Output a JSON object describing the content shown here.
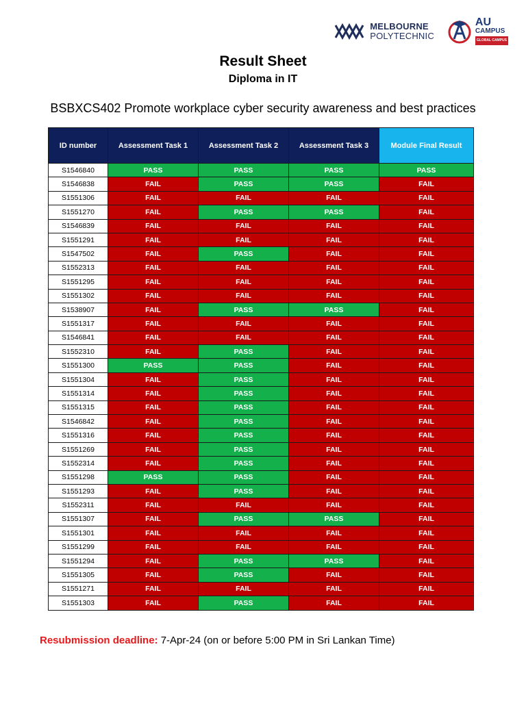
{
  "logos": {
    "melbourne_polytechnic": {
      "line1": "MELBOURNE",
      "line2": "POLYTECHNIC"
    },
    "au_campus": {
      "line1": "AU",
      "line2": "CAMPUS",
      "tagline": "GLOBAL CAMPUS"
    }
  },
  "title": "Result Sheet",
  "subtitle": "Diploma in IT",
  "course": "BSBXCS402 Promote workplace cyber security awareness and best practices",
  "table": {
    "headers": [
      "ID number",
      "Assessment Task 1",
      "Assessment Task 2",
      "Assessment Task 3",
      "Module Final Result"
    ],
    "rows": [
      [
        "S1546840",
        "PASS",
        "PASS",
        "PASS",
        "PASS"
      ],
      [
        "S1546838",
        "FAIL",
        "PASS",
        "PASS",
        "FAIL"
      ],
      [
        "S1551306",
        "FAIL",
        "FAIL",
        "FAIL",
        "FAIL"
      ],
      [
        "S1551270",
        "FAIL",
        "PASS",
        "PASS",
        "FAIL"
      ],
      [
        "S1546839",
        "FAIL",
        "FAIL",
        "FAIL",
        "FAIL"
      ],
      [
        "S1551291",
        "FAIL",
        "FAIL",
        "FAIL",
        "FAIL"
      ],
      [
        "S1547502",
        "FAIL",
        "PASS",
        "FAIL",
        "FAIL"
      ],
      [
        "S1552313",
        "FAIL",
        "FAIL",
        "FAIL",
        "FAIL"
      ],
      [
        "S1551295",
        "FAIL",
        "FAIL",
        "FAIL",
        "FAIL"
      ],
      [
        "S1551302",
        "FAIL",
        "FAIL",
        "FAIL",
        "FAIL"
      ],
      [
        "S1538907",
        "FAIL",
        "PASS",
        "PASS",
        "FAIL"
      ],
      [
        "S1551317",
        "FAIL",
        "FAIL",
        "FAIL",
        "FAIL"
      ],
      [
        "S1546841",
        "FAIL",
        "FAIL",
        "FAIL",
        "FAIL"
      ],
      [
        "S1552310",
        "FAIL",
        "PASS",
        "FAIL",
        "FAIL"
      ],
      [
        "S1551300",
        "PASS",
        "PASS",
        "FAIL",
        "FAIL"
      ],
      [
        "S1551304",
        "FAIL",
        "PASS",
        "FAIL",
        "FAIL"
      ],
      [
        "S1551314",
        "FAIL",
        "PASS",
        "FAIL",
        "FAIL"
      ],
      [
        "S1551315",
        "FAIL",
        "PASS",
        "FAIL",
        "FAIL"
      ],
      [
        "S1546842",
        "FAIL",
        "PASS",
        "FAIL",
        "FAIL"
      ],
      [
        "S1551316",
        "FAIL",
        "PASS",
        "FAIL",
        "FAIL"
      ],
      [
        "S1551269",
        "FAIL",
        "PASS",
        "FAIL",
        "FAIL"
      ],
      [
        "S1552314",
        "FAIL",
        "PASS",
        "FAIL",
        "FAIL"
      ],
      [
        "S1551298",
        "PASS",
        "PASS",
        "FAIL",
        "FAIL"
      ],
      [
        "S1551293",
        "FAIL",
        "PASS",
        "FAIL",
        "FAIL"
      ],
      [
        "S1552311",
        "FAIL",
        "FAIL",
        "FAIL",
        "FAIL"
      ],
      [
        "S1551307",
        "FAIL",
        "PASS",
        "PASS",
        "FAIL"
      ],
      [
        "S1551301",
        "FAIL",
        "FAIL",
        "FAIL",
        "FAIL"
      ],
      [
        "S1551299",
        "FAIL",
        "FAIL",
        "FAIL",
        "FAIL"
      ],
      [
        "S1551294",
        "FAIL",
        "PASS",
        "PASS",
        "FAIL"
      ],
      [
        "S1551305",
        "FAIL",
        "PASS",
        "FAIL",
        "FAIL"
      ],
      [
        "S1551271",
        "FAIL",
        "FAIL",
        "FAIL",
        "FAIL"
      ],
      [
        "S1551303",
        "FAIL",
        "PASS",
        "FAIL",
        "FAIL"
      ]
    ]
  },
  "deadline": {
    "label": "Resubmission deadline:",
    "value": "7-Apr-24 (on or before 5:00 PM in Sri Lankan Time)"
  },
  "colors": {
    "pass": "#13b04c",
    "fail": "#c00000",
    "header": "#0e1f5a",
    "final_header": "#17b4ee",
    "deadline_label": "#e8191c"
  }
}
